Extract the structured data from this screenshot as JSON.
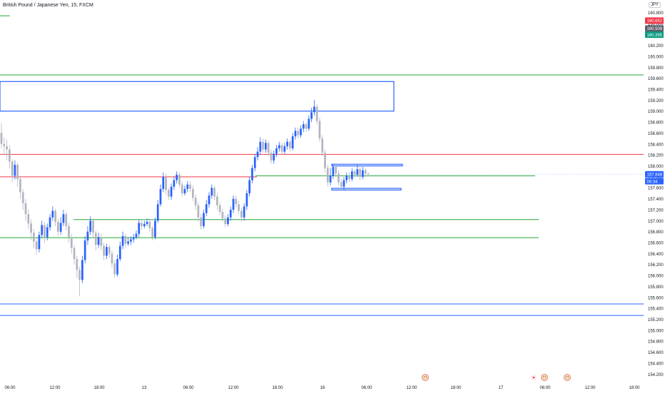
{
  "header": {
    "title": "British Pound / Japanese Yen, 15, FXCM",
    "currency": "JPY"
  },
  "colors": {
    "up": "#2962ff",
    "down": "#b2b5be",
    "green_line": "#26a638",
    "red_line": "#f23645",
    "blue_line": "#2962ff",
    "badge_red": "#f23645",
    "badge_gray": "#5d606b",
    "badge_green": "#089981",
    "badge_blue": "#2962ff"
  },
  "chart_data": {
    "type": "candlestick",
    "symbol": "British Pound / Japanese Yen",
    "interval": "15",
    "source": "FXCM",
    "yaxis": {
      "ticks": [
        "160.800",
        "160.600",
        "160.400",
        "160.200",
        "160.000",
        "159.800",
        "159.600",
        "159.400",
        "159.200",
        "159.000",
        "158.800",
        "158.600",
        "158.400",
        "158.200",
        "158.000",
        "157.800",
        "157.600",
        "157.400",
        "157.200",
        "157.000",
        "156.800",
        "156.600",
        "156.400",
        "156.200",
        "156.000",
        "155.800",
        "155.600",
        "155.400",
        "155.200",
        "155.000",
        "154.800",
        "154.600",
        "154.400",
        "154.200"
      ],
      "range": [
        154.1,
        160.95
      ]
    },
    "xaxis": {
      "labels": [
        "06:00",
        "12:00",
        "18:00",
        "13",
        "06:00",
        "12:00",
        "18:00",
        "16",
        "06:00",
        "12:00",
        "18:00",
        "17",
        "06:00",
        "12:00",
        "18:00"
      ]
    },
    "price_badges": [
      {
        "label": "160.652",
        "value": 160.652,
        "color": "#f23645"
      },
      {
        "label": "160.508",
        "value": 160.508,
        "color": "#5d606b"
      },
      {
        "label": "160.395",
        "value": 160.395,
        "color": "#089981"
      },
      {
        "label": "157.848",
        "value": 157.848,
        "color": "#2962ff"
      },
      {
        "label": "00:34",
        "value": 157.72,
        "color": "#2962ff"
      }
    ],
    "horizontal_lines": [
      {
        "value": 160.74,
        "color": "#26a638",
        "span": "short"
      },
      {
        "value": 159.66,
        "color": "#26a638",
        "span": "full"
      },
      {
        "value": 158.21,
        "color": "#f23645",
        "span": "full"
      },
      {
        "value": 157.8,
        "color": "#f23645",
        "span": "left"
      },
      {
        "value": 157.82,
        "color": "#26a638",
        "span": "right"
      },
      {
        "value": 157.02,
        "color": "#26a638",
        "span": "mid"
      },
      {
        "value": 156.69,
        "color": "#26a638",
        "span": "wide"
      },
      {
        "value": 155.48,
        "color": "#2962ff",
        "span": "full"
      },
      {
        "value": 155.27,
        "color": "#2962ff",
        "span": "full"
      }
    ],
    "zones": [
      {
        "from": 159.0,
        "to": 159.54,
        "color": "#2962ff"
      },
      {
        "from": 158.0,
        "to": 158.03,
        "color": "#2962ff"
      },
      {
        "from": 157.56,
        "to": 157.59,
        "color": "#2962ff"
      }
    ],
    "candles": [
      [
        158.6,
        158.4,
        158.78,
        158.32
      ],
      [
        158.4,
        158.36,
        158.52,
        158.2
      ],
      [
        158.36,
        158.3,
        158.48,
        158.1
      ],
      [
        158.3,
        158.08,
        158.38,
        157.95
      ],
      [
        158.08,
        157.82,
        158.12,
        157.7
      ],
      [
        157.82,
        158.02,
        158.1,
        157.75
      ],
      [
        158.02,
        157.76,
        158.06,
        157.62
      ],
      [
        157.76,
        157.52,
        157.82,
        157.4
      ],
      [
        157.52,
        157.32,
        157.58,
        157.2
      ],
      [
        157.32,
        157.12,
        157.4,
        157.0
      ],
      [
        157.12,
        156.95,
        157.2,
        156.85
      ],
      [
        156.95,
        156.78,
        157.02,
        156.65
      ],
      [
        156.78,
        156.62,
        156.85,
        156.5
      ],
      [
        156.62,
        156.48,
        156.7,
        156.38
      ],
      [
        156.48,
        156.74,
        156.8,
        156.42
      ],
      [
        156.74,
        156.92,
        157.0,
        156.68
      ],
      [
        156.92,
        156.7,
        156.98,
        156.6
      ],
      [
        156.7,
        156.88,
        156.95,
        156.64
      ],
      [
        156.88,
        157.06,
        157.12,
        156.82
      ],
      [
        157.06,
        157.18,
        157.26,
        157.0
      ],
      [
        157.18,
        156.98,
        157.22,
        156.9
      ],
      [
        156.98,
        156.8,
        157.04,
        156.72
      ],
      [
        156.8,
        156.96,
        157.06,
        156.74
      ],
      [
        156.96,
        157.12,
        157.2,
        156.9
      ],
      [
        157.12,
        156.9,
        157.16,
        156.82
      ],
      [
        156.9,
        156.7,
        156.96,
        156.6
      ],
      [
        156.7,
        156.5,
        156.76,
        156.4
      ],
      [
        156.5,
        156.3,
        156.56,
        156.2
      ],
      [
        156.3,
        156.1,
        156.36,
        155.96
      ],
      [
        156.1,
        155.92,
        156.16,
        155.62
      ],
      [
        155.92,
        156.28,
        156.36,
        155.86
      ],
      [
        156.28,
        156.64,
        156.72,
        156.22
      ],
      [
        156.64,
        156.8,
        156.9,
        156.56
      ],
      [
        156.8,
        157.0,
        157.08,
        156.74
      ],
      [
        157.0,
        156.78,
        157.04,
        156.7
      ],
      [
        156.78,
        156.56,
        156.82,
        156.46
      ],
      [
        156.56,
        156.7,
        156.78,
        156.5
      ],
      [
        156.7,
        156.54,
        156.76,
        156.46
      ],
      [
        156.54,
        156.36,
        156.6,
        156.28
      ],
      [
        156.36,
        156.52,
        156.58,
        156.3
      ],
      [
        156.52,
        156.4,
        156.56,
        156.32
      ],
      [
        156.4,
        156.22,
        156.46,
        156.14
      ],
      [
        156.22,
        156.02,
        156.28,
        155.96
      ],
      [
        156.02,
        156.3,
        156.38,
        155.98
      ],
      [
        156.3,
        156.54,
        156.62,
        156.26
      ],
      [
        156.54,
        156.72,
        156.8,
        156.48
      ],
      [
        156.72,
        156.58,
        156.76,
        156.5
      ],
      [
        156.58,
        156.62,
        156.7,
        156.54
      ],
      [
        156.62,
        156.66,
        156.72,
        156.56
      ],
      [
        156.66,
        156.7,
        156.76,
        156.6
      ],
      [
        156.7,
        156.76,
        156.82,
        156.66
      ],
      [
        156.76,
        156.96,
        157.02,
        156.7
      ],
      [
        156.96,
        156.9,
        157.0,
        156.84
      ],
      [
        156.9,
        156.94,
        157.0,
        156.86
      ],
      [
        156.94,
        156.98,
        157.04,
        156.9
      ],
      [
        156.98,
        156.86,
        157.02,
        156.8
      ],
      [
        156.86,
        156.7,
        156.9,
        156.64
      ],
      [
        156.7,
        157.0,
        157.06,
        156.66
      ],
      [
        157.0,
        157.3,
        157.38,
        156.96
      ],
      [
        157.3,
        157.58,
        157.66,
        157.26
      ],
      [
        157.58,
        157.8,
        157.88,
        157.52
      ],
      [
        157.8,
        157.56,
        157.86,
        157.48
      ],
      [
        157.56,
        157.44,
        157.6,
        157.38
      ],
      [
        157.44,
        157.62,
        157.68,
        157.38
      ],
      [
        157.62,
        157.74,
        157.8,
        157.56
      ],
      [
        157.74,
        157.84,
        157.9,
        157.68
      ],
      [
        157.84,
        157.66,
        157.88,
        157.6
      ],
      [
        157.66,
        157.5,
        157.72,
        157.44
      ],
      [
        157.5,
        157.58,
        157.64,
        157.46
      ],
      [
        157.58,
        157.66,
        157.72,
        157.52
      ],
      [
        157.66,
        157.58,
        157.72,
        157.52
      ],
      [
        157.58,
        157.42,
        157.64,
        157.36
      ],
      [
        157.42,
        157.28,
        157.48,
        157.2
      ],
      [
        157.28,
        157.06,
        157.34,
        156.98
      ],
      [
        157.06,
        156.9,
        157.12,
        156.84
      ],
      [
        156.9,
        157.14,
        157.2,
        156.86
      ],
      [
        157.14,
        157.3,
        157.38,
        157.08
      ],
      [
        157.3,
        157.46,
        157.52,
        157.24
      ],
      [
        157.46,
        157.6,
        157.66,
        157.4
      ],
      [
        157.6,
        157.44,
        157.64,
        157.38
      ],
      [
        157.44,
        157.28,
        157.5,
        157.2
      ],
      [
        157.28,
        157.16,
        157.34,
        157.1
      ],
      [
        157.16,
        157.04,
        157.22,
        156.98
      ],
      [
        157.04,
        156.94,
        157.1,
        156.88
      ],
      [
        156.94,
        157.06,
        157.12,
        156.9
      ],
      [
        157.06,
        157.2,
        157.26,
        157.0
      ],
      [
        157.2,
        157.4,
        157.46,
        157.14
      ],
      [
        157.4,
        157.3,
        157.46,
        157.24
      ],
      [
        157.3,
        157.18,
        157.36,
        157.12
      ],
      [
        157.18,
        157.06,
        157.24,
        156.98
      ],
      [
        157.06,
        157.26,
        157.32,
        157.0
      ],
      [
        157.26,
        157.5,
        157.56,
        157.2
      ],
      [
        157.5,
        157.74,
        157.8,
        157.44
      ],
      [
        157.74,
        157.96,
        158.02,
        157.68
      ],
      [
        157.96,
        158.16,
        158.22,
        157.9
      ],
      [
        158.16,
        158.26,
        158.34,
        158.1
      ],
      [
        158.26,
        158.44,
        158.52,
        158.2
      ],
      [
        158.44,
        158.3,
        158.5,
        158.24
      ],
      [
        158.3,
        158.42,
        158.48,
        158.24
      ],
      [
        158.42,
        158.24,
        158.46,
        158.18
      ],
      [
        158.24,
        158.1,
        158.3,
        158.04
      ],
      [
        158.1,
        158.22,
        158.28,
        158.04
      ],
      [
        158.22,
        158.32,
        158.38,
        158.16
      ],
      [
        158.32,
        158.38,
        158.44,
        158.26
      ],
      [
        158.38,
        158.26,
        158.42,
        158.2
      ],
      [
        158.26,
        158.36,
        158.42,
        158.22
      ],
      [
        158.36,
        158.44,
        158.5,
        158.3
      ],
      [
        158.44,
        158.32,
        158.48,
        158.26
      ],
      [
        158.32,
        158.54,
        158.6,
        158.28
      ],
      [
        158.54,
        158.64,
        158.7,
        158.48
      ],
      [
        158.64,
        158.56,
        158.7,
        158.5
      ],
      [
        158.56,
        158.68,
        158.74,
        158.52
      ],
      [
        158.68,
        158.76,
        158.82,
        158.62
      ],
      [
        158.76,
        158.68,
        158.8,
        158.62
      ],
      [
        158.68,
        158.86,
        158.92,
        158.64
      ],
      [
        158.86,
        158.98,
        159.06,
        158.8
      ],
      [
        158.98,
        159.08,
        159.2,
        158.92
      ],
      [
        159.08,
        158.82,
        159.12,
        158.76
      ],
      [
        158.82,
        158.5,
        158.88,
        158.44
      ],
      [
        158.5,
        158.24,
        158.56,
        158.18
      ],
      [
        158.24,
        157.96,
        158.3,
        157.88
      ],
      [
        157.96,
        157.7,
        158.02,
        157.62
      ],
      [
        157.7,
        157.82,
        157.96,
        157.64
      ],
      [
        157.82,
        157.98,
        158.04,
        157.76
      ],
      [
        157.98,
        157.86,
        158.02,
        157.8
      ],
      [
        157.86,
        157.7,
        157.92,
        157.64
      ],
      [
        157.7,
        157.62,
        157.76,
        157.54
      ],
      [
        157.62,
        157.74,
        157.8,
        157.56
      ],
      [
        157.74,
        157.82,
        157.88,
        157.68
      ],
      [
        157.82,
        157.76,
        157.88,
        157.7
      ],
      [
        157.76,
        157.9,
        157.96,
        157.72
      ],
      [
        157.9,
        157.84,
        157.94,
        157.78
      ],
      [
        157.84,
        157.94,
        158.02,
        157.8
      ],
      [
        157.94,
        157.8,
        157.98,
        157.74
      ],
      [
        157.8,
        157.92,
        157.98,
        157.76
      ],
      [
        157.92,
        157.86,
        157.96,
        157.8
      ],
      [
        157.86,
        157.85,
        157.88,
        157.8
      ]
    ],
    "event_markers": [
      {
        "label": "event-1",
        "x_label": "12:00"
      },
      {
        "label": "event-2",
        "x_label": "06:00"
      },
      {
        "label": "event-3",
        "x_label": "06:00"
      },
      {
        "label": "event-4",
        "x_label": "12:00"
      }
    ]
  }
}
